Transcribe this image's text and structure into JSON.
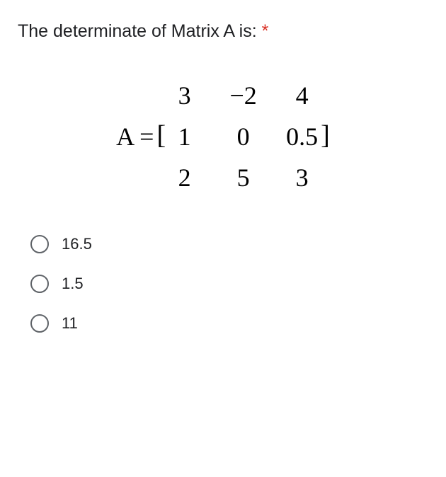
{
  "question": {
    "text": "The determinate of Matrix A is: ",
    "required": "*",
    "text_color": "#202124",
    "asterisk_color": "#d93025",
    "fontsize": 25
  },
  "matrix": {
    "label": "A =",
    "left_bracket": "[",
    "right_bracket": "]",
    "rows": [
      [
        "3",
        "−2",
        "4"
      ],
      [
        "1",
        "0",
        "0.5"
      ],
      [
        "2",
        "5",
        "3"
      ]
    ],
    "fontsize": 36,
    "font_family": "Times New Roman"
  },
  "options": [
    {
      "label": "16.5",
      "selected": false
    },
    {
      "label": "1.5",
      "selected": false
    },
    {
      "label": "11",
      "selected": false
    }
  ],
  "colors": {
    "background": "#ffffff",
    "text": "#202124",
    "radio_border": "#5f6368"
  }
}
